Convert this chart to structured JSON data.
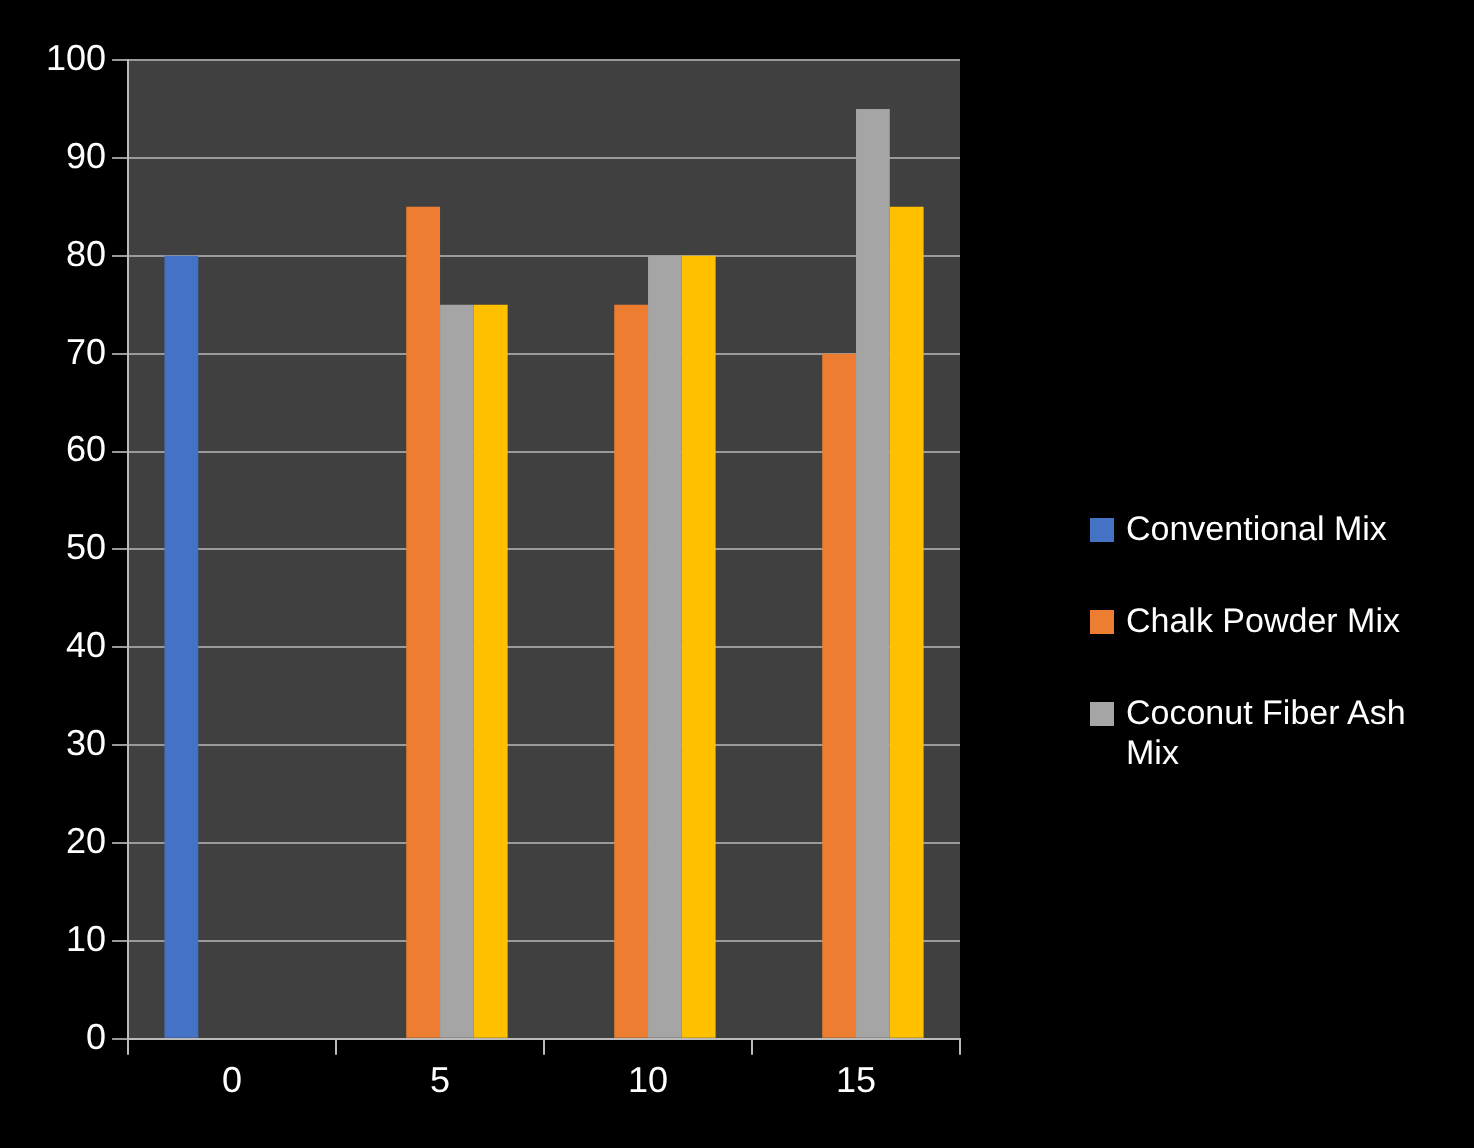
{
  "chart_data": {
    "type": "bar",
    "categories": [
      "0",
      "5",
      "10",
      "15"
    ],
    "series": [
      {
        "name": "Conventional Mix",
        "color": "#4472c4",
        "values": [
          80,
          null,
          null,
          null
        ]
      },
      {
        "name": "Chalk Powder Mix",
        "color": "#ed7d31",
        "values": [
          null,
          85,
          75,
          70
        ]
      },
      {
        "name": "Coconut Fiber Ash Mix",
        "color": "#a5a5a5",
        "values": [
          null,
          75,
          80,
          95
        ]
      },
      {
        "color": "#ffc000",
        "values": [
          null,
          75,
          80,
          85
        ]
      }
    ],
    "ylim": [
      0,
      100
    ],
    "yticks": [
      0,
      10,
      20,
      30,
      40,
      50,
      60,
      70,
      80,
      90,
      100
    ],
    "grid": "y",
    "legend": "right"
  }
}
